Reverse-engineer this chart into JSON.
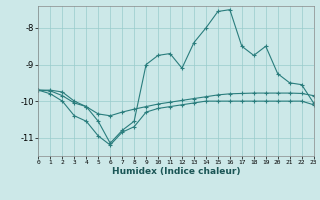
{
  "xlabel": "Humidex (Indice chaleur)",
  "x": [
    0,
    1,
    2,
    3,
    4,
    5,
    6,
    7,
    8,
    9,
    10,
    11,
    12,
    13,
    14,
    15,
    16,
    17,
    18,
    19,
    20,
    21,
    22,
    23
  ],
  "line_min": [
    -9.7,
    -9.8,
    -10.0,
    -10.4,
    -10.55,
    -10.95,
    -11.2,
    -10.85,
    -10.7,
    -10.3,
    -10.2,
    -10.15,
    -10.1,
    -10.05,
    -10.0,
    -10.0,
    -10.0,
    -10.0,
    -10.0,
    -10.0,
    -10.0,
    -10.0,
    -10.0,
    -10.1
  ],
  "line_mean": [
    -9.7,
    -9.72,
    -9.85,
    -10.05,
    -10.15,
    -10.35,
    -10.4,
    -10.3,
    -10.22,
    -10.15,
    -10.08,
    -10.03,
    -9.98,
    -9.93,
    -9.88,
    -9.83,
    -9.8,
    -9.79,
    -9.78,
    -9.78,
    -9.78,
    -9.78,
    -9.79,
    -9.85
  ],
  "line_max": [
    -9.7,
    -9.7,
    -9.75,
    -10.0,
    -10.15,
    -10.55,
    -11.15,
    -10.8,
    -10.55,
    -9.0,
    -8.75,
    -8.7,
    -9.1,
    -8.4,
    -8.0,
    -7.55,
    -7.5,
    -8.5,
    -8.75,
    -8.5,
    -9.25,
    -9.5,
    -9.55,
    -10.05
  ],
  "line_color": "#2a7d7d",
  "bg_color": "#cce8e8",
  "grid_color": "#99cccc",
  "xlim": [
    0,
    23
  ],
  "ylim": [
    -11.5,
    -7.4
  ],
  "yticks": [
    -11,
    -10,
    -9,
    -8
  ],
  "xticks": [
    0,
    1,
    2,
    3,
    4,
    5,
    6,
    7,
    8,
    9,
    10,
    11,
    12,
    13,
    14,
    15,
    16,
    17,
    18,
    19,
    20,
    21,
    22,
    23
  ]
}
